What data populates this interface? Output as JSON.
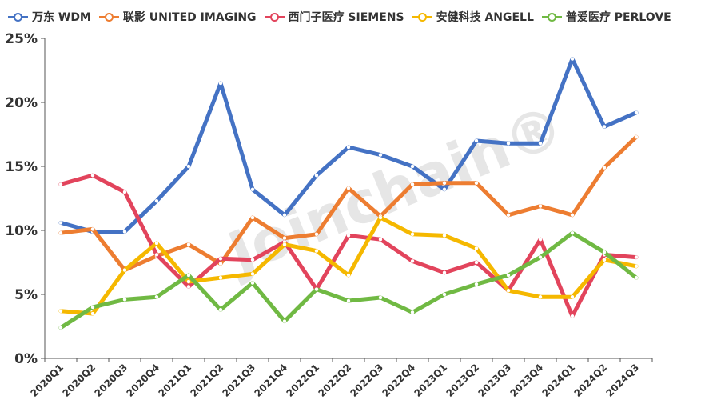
{
  "watermark": "Joinchain®",
  "chart_data": {
    "type": "line",
    "title": "",
    "xlabel": "",
    "ylabel": "",
    "ylim": [
      0,
      25
    ],
    "yticks": [
      "0%",
      "5%",
      "10%",
      "15%",
      "20%",
      "25%"
    ],
    "grid": false,
    "legend_position": "top",
    "categories": [
      "2020Q1",
      "2020Q2",
      "2020Q3",
      "2020Q4",
      "2021Q1",
      "2021Q2",
      "2021Q3",
      "2021Q4",
      "2022Q1",
      "2022Q2",
      "2022Q3",
      "2022Q4",
      "2023Q1",
      "2023Q2",
      "2023Q3",
      "2023Q4",
      "2024Q1",
      "2024Q2",
      "2024Q3"
    ],
    "series": [
      {
        "name": "万东 WDM",
        "color": "#4472C4",
        "values": [
          10.6,
          9.9,
          9.9,
          12.3,
          15.0,
          21.5,
          13.2,
          11.2,
          14.3,
          16.5,
          15.9,
          15.0,
          13.2,
          17.0,
          16.8,
          16.8,
          23.4,
          18.1,
          19.2
        ]
      },
      {
        "name": "联影 UNITED IMAGING",
        "color": "#ED7D31",
        "values": [
          9.8,
          10.1,
          6.9,
          8.0,
          8.9,
          7.4,
          11.0,
          9.4,
          9.7,
          13.3,
          11.1,
          13.6,
          13.7,
          13.7,
          11.2,
          11.9,
          11.2,
          14.9,
          17.3
        ]
      },
      {
        "name": "西门子医疗 SIEMENS",
        "color": "#E2445C",
        "values": [
          13.6,
          14.3,
          13.0,
          8.1,
          5.6,
          7.8,
          7.7,
          9.1,
          5.4,
          9.6,
          9.3,
          7.6,
          6.7,
          7.5,
          5.3,
          9.3,
          3.3,
          8.1,
          7.9
        ]
      },
      {
        "name": "安健科技 ANGELL",
        "color": "#F5B800",
        "values": [
          3.7,
          3.5,
          6.9,
          9.0,
          6.0,
          6.3,
          6.6,
          8.9,
          8.4,
          6.5,
          11.0,
          9.7,
          9.6,
          8.6,
          5.3,
          4.8,
          4.8,
          7.7,
          7.2
        ]
      },
      {
        "name": "普爱医疗 PERLOVE",
        "color": "#70B943",
        "values": [
          2.4,
          4.0,
          4.6,
          4.8,
          6.5,
          3.8,
          5.9,
          2.9,
          5.4,
          4.5,
          4.75,
          3.6,
          5.0,
          5.8,
          6.5,
          7.9,
          9.8,
          8.3,
          6.3
        ]
      }
    ]
  }
}
